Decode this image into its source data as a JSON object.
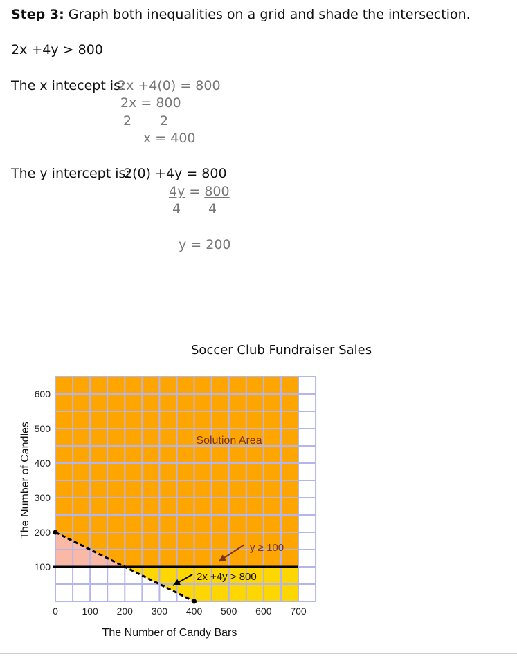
{
  "step": {
    "label": "Step 3:",
    "text": " Graph both inequalities on a grid and shade the intersection."
  },
  "inequality": "2x +4y > 800",
  "x_intercept": {
    "label": "The x intecept is:",
    "eq1": "2x +4(0)  = 800",
    "num_left": "2x",
    "num_eq": " = ",
    "num_right": "800",
    "den_left": "2",
    "den_right": "2",
    "result": "x = 400"
  },
  "y_intercept": {
    "label": "The y intercept is:",
    "eq1": "2(0)  +4y  = 800",
    "num_left": "4y",
    "num_eq": " = ",
    "num_right": "800",
    "den_left": "4",
    "den_right": "4",
    "result": "y = 200"
  },
  "chart_data": {
    "type": "line",
    "title": "Soccer Club Fundraiser Sales",
    "xlabel": "The Number of Candy Bars",
    "ylabel": "The Number of Candles",
    "xlim": [
      0,
      700
    ],
    "ylim": [
      0,
      600
    ],
    "xticks": [
      0,
      100,
      200,
      300,
      400,
      500,
      600,
      700
    ],
    "yticks": [
      100,
      200,
      300,
      400,
      500,
      600
    ],
    "grid": true,
    "series": [
      {
        "style": "dashed",
        "x": [
          0,
          400
        ],
        "y": [
          200,
          0
        ]
      },
      {
        "style": "solid",
        "x": [
          0,
          700
        ],
        "y": [
          100,
          100
        ]
      }
    ],
    "annotations": [
      {
        "text": "Solution Area",
        "x": 500,
        "y": 470
      },
      {
        "text": "y ≥ 100",
        "x": 500,
        "y": 150
      },
      {
        "text": "2x +4y > 800",
        "x": 490,
        "y": 70
      }
    ],
    "colors": {
      "solution": "#ffa500",
      "yellow": "#ffd700",
      "pink": "#f9b9a6",
      "grid": "#b5b5ee",
      "text_annotation": "#7a3418"
    }
  }
}
